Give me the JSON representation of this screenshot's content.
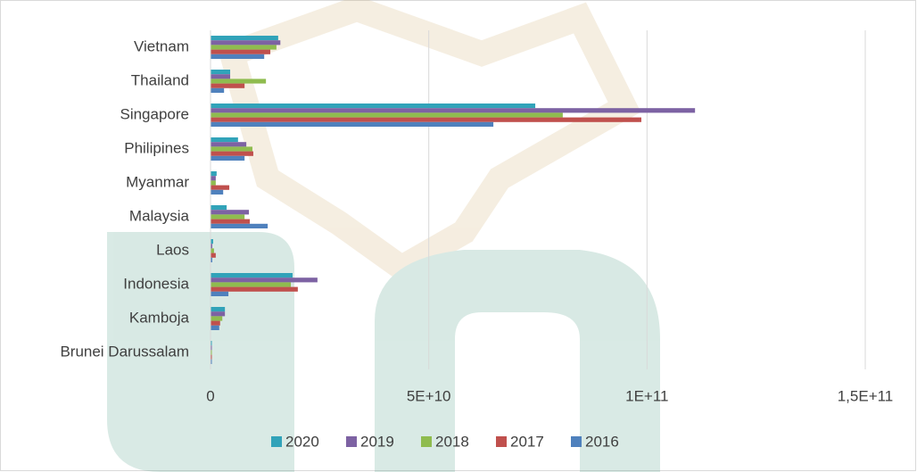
{
  "chart_data": {
    "type": "bar",
    "orientation": "horizontal",
    "categories": [
      "Vietnam",
      "Thailand",
      "Singapore",
      "Philipines",
      "Myanmar",
      "Malaysia",
      "Laos",
      "Indonesia",
      "Kamboja",
      "Brunei Darussalam"
    ],
    "series": [
      {
        "name": "2020",
        "color": "#31a3b9",
        "values": [
          15500000000,
          4500000000,
          74400000000,
          6300000000,
          1400000000,
          3700000000,
          600000000,
          18800000000,
          3300000000,
          300000000
        ]
      },
      {
        "name": "2019",
        "color": "#7d62a3",
        "values": [
          16000000000,
          4500000000,
          111000000000,
          8200000000,
          1200000000,
          8800000000,
          400000000,
          24500000000,
          3300000000,
          300000000
        ]
      },
      {
        "name": "2018",
        "color": "#8fbc4f",
        "values": [
          15100000000,
          12700000000,
          80700000000,
          9600000000,
          1200000000,
          7800000000,
          800000000,
          18400000000,
          2700000000,
          300000000
        ]
      },
      {
        "name": "2017",
        "color": "#c0504d",
        "values": [
          13700000000,
          7800000000,
          98700000000,
          9800000000,
          4300000000,
          9000000000,
          1200000000,
          20000000000,
          2200000000,
          300000000
        ]
      },
      {
        "name": "2016",
        "color": "#4f81bd",
        "values": [
          12300000000,
          3100000000,
          64800000000,
          7800000000,
          2900000000,
          13100000000,
          400000000,
          4100000000,
          2000000000,
          300000000
        ]
      }
    ],
    "xlim": [
      0,
      150000000000
    ],
    "xticks": [
      0,
      {
        "value": 50000000000,
        "label": "5E+10"
      },
      {
        "value": 100000000000,
        "label": "1E+11"
      },
      {
        "value": 150000000000,
        "label": "1,5E+11"
      }
    ],
    "grid": true,
    "legend": "bottom"
  }
}
